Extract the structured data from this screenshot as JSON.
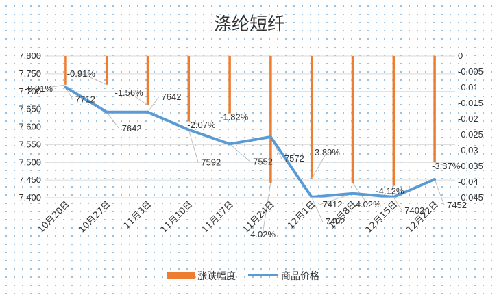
{
  "chart_data": {
    "type": "bar+line",
    "title": "涤纶短纤",
    "categories": [
      "10月20日",
      "10月27日",
      "11月3日",
      "11月10日",
      "11月17日",
      "11月24日",
      "12月1日",
      "12月8日",
      "12月15日",
      "12月22日"
    ],
    "series": [
      {
        "name": "涨跌幅度",
        "chart": "bar",
        "axis": "right",
        "color": "#ed7d31",
        "values": [
          -0.0091,
          -0.0091,
          -0.0156,
          -0.0207,
          -0.0182,
          -0.0402,
          -0.0389,
          -0.0402,
          -0.0412,
          -0.0337
        ],
        "labels": [
          "-0.91%",
          "-0.91%",
          "-1.56%",
          "-2.07%",
          "-1.82%",
          "-4.02%",
          "-3.89%",
          "-4.02%",
          "-4.12%",
          "-3.37%"
        ]
      },
      {
        "name": "商品价格",
        "chart": "line",
        "axis": "left",
        "color": "#5b9bd5",
        "values": [
          7712,
          7642,
          7642,
          7592,
          7552,
          7572,
          7402,
          7412,
          7402,
          7452
        ],
        "labels": [
          "7712",
          "7642",
          "7642",
          "7592",
          "7552",
          "7572",
          "7402",
          "7412",
          "7402",
          "7452"
        ]
      }
    ],
    "y_left": {
      "min": 7400,
      "max": 7800,
      "step": 50,
      "ticks": [
        "7.400",
        "7.450",
        "7.500",
        "7.550",
        "7.600",
        "7.650",
        "7.700",
        "7.750",
        "7.800"
      ]
    },
    "y_right": {
      "min": -0.045,
      "max": 0,
      "step": 0.005,
      "ticks": [
        "0",
        "-0.005",
        "-0.01",
        "-0.015",
        "-0.02",
        "-0.025",
        "-0.03",
        "-0.035",
        "-0.04",
        "-0.045"
      ]
    },
    "grid": true,
    "legend_position": "bottom"
  }
}
